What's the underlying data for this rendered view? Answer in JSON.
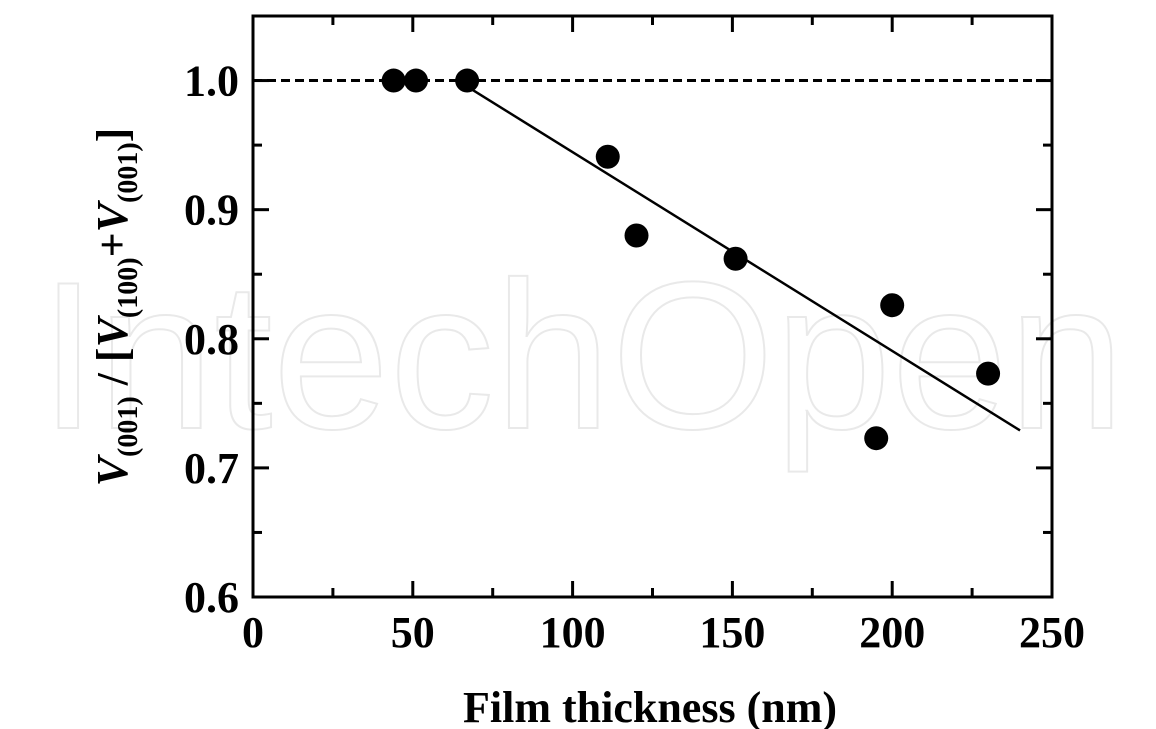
{
  "chart_data": {
    "type": "scatter",
    "xlabel": "Film thickness (nm)",
    "ylabel": {
      "v1": "V",
      "sub1": "(001)",
      "mid": " / [",
      "v2": "V",
      "sub2": "(100)",
      "plus": "+",
      "v3": "V",
      "sub3": "(001)",
      "end": "]"
    },
    "xlim": [
      0,
      250
    ],
    "ylim": [
      0.6,
      1.05
    ],
    "xticks": [
      0,
      50,
      100,
      150,
      200,
      250
    ],
    "xtick_labels": [
      "0",
      "50",
      "100",
      "150",
      "200",
      "250"
    ],
    "yticks": [
      0.6,
      0.7,
      0.8,
      0.9,
      1.0
    ],
    "ytick_labels": [
      "0.6",
      "0.7",
      "0.8",
      "0.9",
      "1.0"
    ],
    "x_minor_step": 25,
    "y_minor_step": 0.05,
    "series": [
      {
        "kind": "points",
        "points": [
          {
            "x": 44,
            "y": 1.0
          },
          {
            "x": 51,
            "y": 1.0
          },
          {
            "x": 67,
            "y": 1.0
          },
          {
            "x": 111,
            "y": 0.941
          },
          {
            "x": 120,
            "y": 0.88
          },
          {
            "x": 151,
            "y": 0.862
          },
          {
            "x": 195,
            "y": 0.723
          },
          {
            "x": 200,
            "y": 0.826
          },
          {
            "x": 230,
            "y": 0.773
          }
        ]
      },
      {
        "kind": "fit-line",
        "points": [
          {
            "x": 64,
            "y": 1.0
          },
          {
            "x": 240,
            "y": 0.729
          }
        ]
      },
      {
        "kind": "reference-line",
        "style": "dashed",
        "y": 1.0
      }
    ],
    "grid": false,
    "legend": "none"
  },
  "watermark": "IntechOpen",
  "colors": {
    "ink": "#000000",
    "watermark": "#e9e9e9"
  }
}
